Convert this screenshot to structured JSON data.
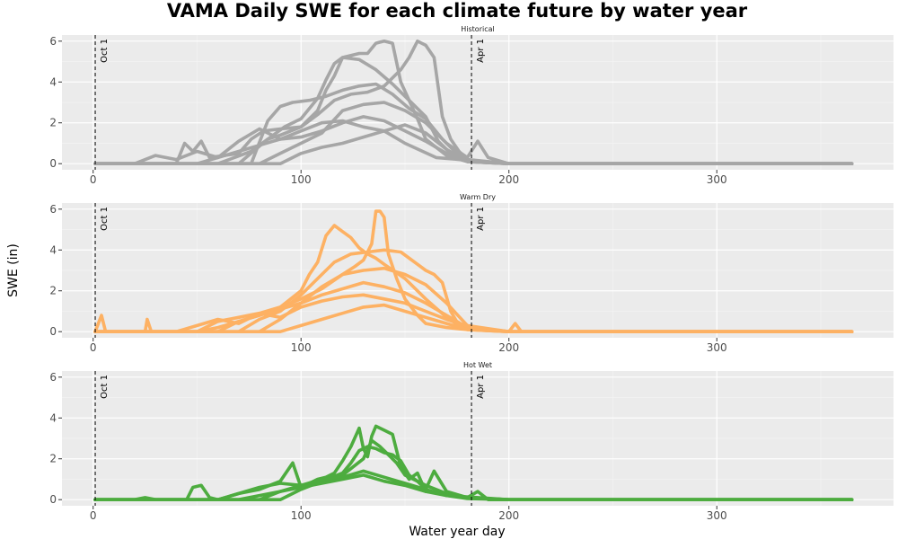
{
  "chart_data": {
    "type": "line",
    "title": "VAMA Daily SWE for each climate future by water year",
    "xlabel": "Water year day",
    "ylabel": "SWE (in)",
    "xlim": [
      -15,
      385
    ],
    "ylim": [
      -0.3,
      6.3
    ],
    "xticks": [
      0,
      100,
      200,
      300
    ],
    "yticks": [
      0,
      2,
      4,
      6
    ],
    "grid": true,
    "legend": "none",
    "vlines": [
      {
        "x": 1,
        "label": "Oct 1"
      },
      {
        "x": 182,
        "label": "Apr 1"
      }
    ],
    "panels": [
      {
        "name": "Historical",
        "color": "#A6A6A6",
        "series": [
          {
            "x": [
              1,
              40,
              44,
              48,
              52,
              56,
              70,
              76,
              82,
              90,
              100,
              108,
              112,
              116,
              120,
              124,
              128,
              132,
              136,
              140,
              144,
              148,
              152,
              156,
              160,
              170,
              180,
              200,
              365
            ],
            "y": [
              0,
              0,
              1.0,
              0.6,
              1.1,
              0.3,
              0.5,
              1.2,
              1.6,
              1.7,
              1.8,
              2.6,
              3.6,
              4.3,
              5.2,
              5.3,
              5.4,
              5.4,
              5.9,
              6.0,
              5.9,
              4.0,
              3.1,
              2.2,
              1.2,
              0.4,
              0.1,
              0,
              0
            ]
          },
          {
            "x": [
              1,
              60,
              76,
              84,
              90,
              100,
              108,
              116,
              124,
              132,
              140,
              148,
              152,
              156,
              160,
              164,
              168,
              172,
              176,
              180,
              200,
              365
            ],
            "y": [
              0,
              0,
              0.6,
              1.2,
              1.4,
              1.8,
              2.4,
              3.1,
              3.4,
              3.5,
              3.8,
              4.6,
              5.2,
              6.0,
              5.8,
              5.2,
              2.3,
              1.2,
              0.6,
              0.2,
              0,
              0
            ]
          },
          {
            "x": [
              1,
              70,
              84,
              92,
              100,
              108,
              112,
              116,
              120,
              128,
              136,
              144,
              152,
              160,
              166,
              172,
              178,
              200,
              365
            ],
            "y": [
              0,
              0,
              1.2,
              1.8,
              2.2,
              3.2,
              4.1,
              4.9,
              5.2,
              5.1,
              4.6,
              3.9,
              3.1,
              2.3,
              1.1,
              0.5,
              0.2,
              0,
              0
            ]
          },
          {
            "x": [
              1,
              76,
              84,
              90,
              96,
              104,
              112,
              120,
              128,
              136,
              144,
              152,
              160,
              168,
              176,
              182,
              200,
              365
            ],
            "y": [
              0,
              0,
              2.1,
              2.8,
              3.0,
              3.1,
              3.3,
              3.6,
              3.8,
              3.9,
              3.4,
              2.7,
              2.2,
              1.2,
              0.4,
              0.1,
              0,
              0
            ]
          },
          {
            "x": [
              1,
              50,
              60,
              70,
              80,
              90,
              100,
              110,
              120,
              130,
              140,
              150,
              160,
              170,
              180,
              200,
              365
            ],
            "y": [
              0,
              0,
              0.3,
              0.6,
              0.9,
              1.2,
              1.3,
              1.6,
              2.0,
              2.3,
              2.1,
              1.6,
              1.1,
              0.5,
              0.1,
              0,
              0
            ]
          },
          {
            "x": [
              1,
              80,
              90,
              100,
              110,
              120,
              130,
              140,
              150,
              160,
              170,
              180,
              185,
              190,
              200,
              365
            ],
            "y": [
              0,
              0,
              0.5,
              1.0,
              1.5,
              2.6,
              2.9,
              3.0,
              2.6,
              2.0,
              1.0,
              0.3,
              1.1,
              0.3,
              0,
              0
            ]
          },
          {
            "x": [
              1,
              20,
              30,
              40,
              50,
              60,
              70,
              80,
              90,
              100,
              110,
              120,
              130,
              140,
              150,
              165,
              200,
              365
            ],
            "y": [
              0,
              0,
              0.4,
              0.2,
              0.6,
              0.3,
              1.1,
              1.7,
              1.2,
              1.6,
              2.0,
              2.1,
              1.8,
              1.6,
              1.0,
              0.3,
              0,
              0
            ]
          },
          {
            "x": [
              1,
              90,
              100,
              110,
              120,
              130,
              140,
              150,
              160,
              170,
              180,
              200,
              365
            ],
            "y": [
              0,
              0,
              0.5,
              0.8,
              1.0,
              1.3,
              1.6,
              1.9,
              1.5,
              0.7,
              0.1,
              0,
              0
            ]
          }
        ]
      },
      {
        "name": "Warm Dry",
        "color": "#FDB163",
        "series": [
          {
            "x": [
              1,
              4,
              6,
              10,
              25,
              26,
              28,
              50,
              60,
              70,
              80,
              90,
              100,
              110,
              120,
              126,
              130,
              134,
              136,
              138,
              140,
              142,
              146,
              150,
              156,
              160,
              170,
              180,
              200,
              203,
              206,
              365
            ],
            "y": [
              0,
              0.8,
              0,
              0,
              0,
              0.6,
              0,
              0,
              0.5,
              0.7,
              0.9,
              1.2,
              1.6,
              2.1,
              2.8,
              3.2,
              3.5,
              4.3,
              5.9,
              5.9,
              5.6,
              3.8,
              2.6,
              1.6,
              0.8,
              0.4,
              0.2,
              0.1,
              0,
              0.4,
              0,
              0
            ]
          },
          {
            "x": [
              1,
              60,
              70,
              80,
              90,
              100,
              104,
              108,
              112,
              116,
              120,
              124,
              128,
              132,
              136,
              140,
              150,
              160,
              170,
              176,
              182,
              200,
              365
            ],
            "y": [
              0,
              0,
              0.5,
              0.8,
              1.2,
              2.0,
              2.8,
              3.4,
              4.7,
              5.2,
              4.9,
              4.6,
              4.1,
              3.8,
              3.6,
              3.3,
              2.6,
              1.6,
              0.7,
              0.3,
              0.1,
              0,
              0
            ]
          },
          {
            "x": [
              1,
              70,
              80,
              90,
              100,
              108,
              116,
              124,
              132,
              140,
              148,
              156,
              160,
              164,
              168,
              172,
              176,
              200,
              365
            ],
            "y": [
              0,
              0,
              0.6,
              1.0,
              1.8,
              2.6,
              3.4,
              3.8,
              3.9,
              4.0,
              3.9,
              3.3,
              3.0,
              2.8,
              2.4,
              1.0,
              0.3,
              0,
              0
            ]
          },
          {
            "x": [
              1,
              80,
              90,
              100,
              110,
              120,
              130,
              140,
              150,
              160,
              170,
              180,
              200,
              365
            ],
            "y": [
              0,
              0,
              0.6,
              1.4,
              2.2,
              2.8,
              3.0,
              3.1,
              2.8,
              2.3,
              1.4,
              0.3,
              0,
              0
            ]
          },
          {
            "x": [
              1,
              50,
              60,
              70,
              80,
              90,
              100,
              110,
              120,
              130,
              140,
              150,
              160,
              170,
              180,
              200,
              365
            ],
            "y": [
              0,
              0,
              0.2,
              0.5,
              0.8,
              1.1,
              1.4,
              1.8,
              2.1,
              2.4,
              2.2,
              1.9,
              1.4,
              0.8,
              0.2,
              0,
              0
            ]
          },
          {
            "x": [
              1,
              40,
              50,
              60,
              70,
              80,
              90,
              100,
              110,
              120,
              130,
              140,
              150,
              160,
              170,
              182,
              200,
              365
            ],
            "y": [
              0,
              0,
              0.3,
              0.6,
              0.4,
              0.9,
              0.7,
              1.2,
              1.5,
              1.7,
              1.8,
              1.6,
              1.4,
              1.0,
              0.6,
              0.2,
              0,
              0
            ]
          },
          {
            "x": [
              1,
              90,
              100,
              110,
              120,
              130,
              140,
              150,
              160,
              170,
              180,
              200,
              365
            ],
            "y": [
              0,
              0,
              0.3,
              0.6,
              0.9,
              1.2,
              1.3,
              1.0,
              0.7,
              0.4,
              0.1,
              0,
              0
            ]
          }
        ]
      },
      {
        "name": "Hot Wet",
        "color": "#4DAC3F",
        "series": [
          {
            "x": [
              1,
              20,
              25,
              30,
              45,
              48,
              52,
              56,
              60,
              70,
              80,
              90,
              96,
              100,
              104,
              108,
              112,
              116,
              120,
              124,
              128,
              130,
              132,
              134,
              136,
              138,
              140,
              144,
              148,
              152,
              156,
              160,
              170,
              180,
              185,
              190,
              200,
              365
            ],
            "y": [
              0,
              0,
              0.1,
              0,
              0,
              0.6,
              0.7,
              0.1,
              0,
              0.3,
              0.5,
              0.9,
              1.8,
              0.6,
              0.8,
              1.0,
              1.1,
              1.3,
              1.9,
              2.6,
              3.5,
              2.5,
              2.1,
              3.1,
              3.6,
              3.5,
              3.4,
              3.2,
              1.6,
              1.0,
              1.3,
              0.4,
              0.3,
              0.1,
              0.4,
              0,
              0,
              0
            ]
          },
          {
            "x": [
              1,
              80,
              90,
              100,
              110,
              120,
              124,
              128,
              132,
              136,
              140,
              144,
              148,
              152,
              156,
              160,
              164,
              170,
              180,
              200,
              365
            ],
            "y": [
              0,
              0,
              0.4,
              0.7,
              0.9,
              1.3,
              1.8,
              2.4,
              2.6,
              2.5,
              2.3,
              2.2,
              1.9,
              1.2,
              0.9,
              0.5,
              1.4,
              0.4,
              0.1,
              0,
              0
            ]
          },
          {
            "x": [
              1,
              90,
              100,
              110,
              120,
              130,
              134,
              138,
              142,
              146,
              150,
              160,
              170,
              180,
              200,
              365
            ],
            "y": [
              0,
              0,
              0.5,
              0.9,
              1.2,
              2.0,
              2.9,
              2.6,
              2.2,
              1.8,
              1.2,
              0.7,
              0.3,
              0.1,
              0,
              0
            ]
          },
          {
            "x": [
              1,
              60,
              70,
              80,
              90,
              100,
              110,
              120,
              130,
              140,
              150,
              160,
              170,
              200,
              365
            ],
            "y": [
              0,
              0,
              0.3,
              0.6,
              0.8,
              0.7,
              1.0,
              1.1,
              1.4,
              1.1,
              0.8,
              0.5,
              0.2,
              0,
              0
            ]
          },
          {
            "x": [
              1,
              70,
              80,
              90,
              100,
              110,
              120,
              130,
              140,
              150,
              160,
              170,
              180,
              200,
              365
            ],
            "y": [
              0,
              0,
              0.2,
              0.4,
              0.6,
              0.8,
              1.0,
              1.2,
              0.9,
              0.7,
              0.4,
              0.2,
              0.05,
              0,
              0
            ]
          }
        ]
      }
    ]
  }
}
